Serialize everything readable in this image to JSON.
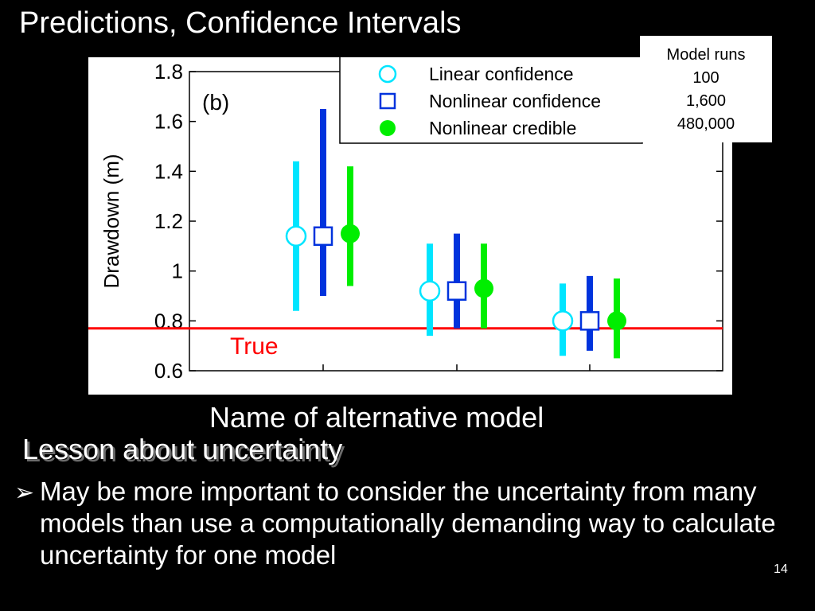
{
  "slide": {
    "title": "Predictions, Confidence Intervals",
    "lesson_heading": "Lesson about uncertainty",
    "bullet": "May be more important to consider the uncertainty from many models than use a computationally demanding way to calculate uncertainty for one model",
    "page_number": "14"
  },
  "runs_box": {
    "title": "Model runs",
    "values": [
      "100",
      "1,600",
      "480,000"
    ]
  },
  "chart_data": {
    "type": "scatter",
    "panel_label": "(b)",
    "title": "",
    "xlabel": "Name of alternative model",
    "ylabel": "Drawdown (m)",
    "ylim": [
      0.6,
      1.8
    ],
    "yticks": [
      "0.6",
      "0.8",
      "1",
      "1.2",
      "1.4",
      "1.6",
      "1.8"
    ],
    "groups": 3,
    "series": [
      {
        "name": "Linear confidence",
        "marker": "circle-open",
        "color": "#00e5ff",
        "values": [
          1.14,
          0.92,
          0.8
        ],
        "lower": [
          0.84,
          0.74,
          0.66
        ],
        "upper": [
          1.44,
          1.11,
          0.95
        ]
      },
      {
        "name": "Nonlinear confidence",
        "marker": "square-open",
        "color": "#0033dd",
        "values": [
          1.14,
          0.92,
          0.8
        ],
        "lower": [
          0.9,
          0.77,
          0.68
        ],
        "upper": [
          1.65,
          1.15,
          0.98
        ]
      },
      {
        "name": "Nonlinear credible",
        "marker": "circle-filled",
        "color": "#00ee00",
        "values": [
          1.15,
          0.93,
          0.8
        ],
        "lower": [
          0.94,
          0.77,
          0.65
        ],
        "upper": [
          1.42,
          1.11,
          0.97
        ]
      }
    ],
    "reference_line": {
      "label": "True",
      "value": 0.77,
      "color": "#ff0000"
    },
    "grid": false,
    "legend_position": "top-right"
  }
}
